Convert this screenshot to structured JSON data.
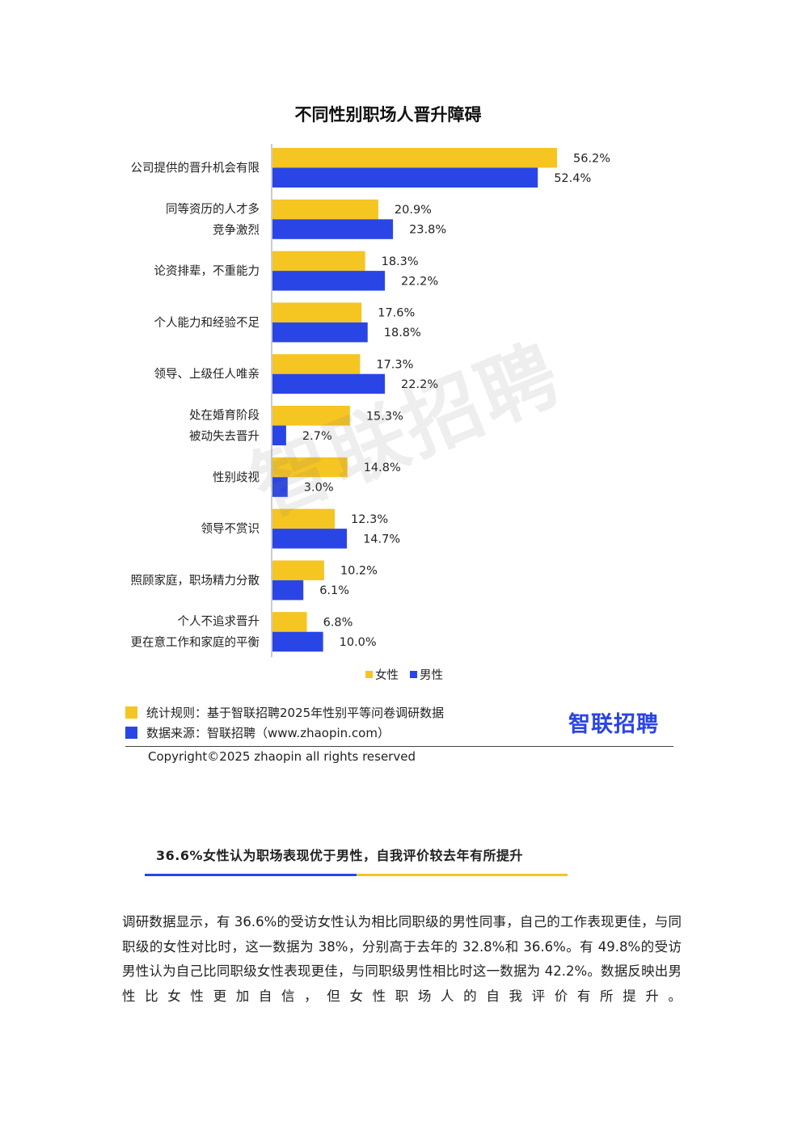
{
  "chart_data": {
    "type": "bar",
    "orientation": "horizontal",
    "title": "不同性别职场人晋升障碍",
    "categories": [
      [
        "公司提供的晋升机会有限"
      ],
      [
        "同等资历的人才多",
        "竞争激烈"
      ],
      [
        "论资排辈，不重能力"
      ],
      [
        "个人能力和经验不足"
      ],
      [
        "领导、上级任人唯亲"
      ],
      [
        "处在婚育阶段",
        "被动失去晋升"
      ],
      [
        "性别歧视"
      ],
      [
        "领导不赏识"
      ],
      [
        "照顾家庭，职场精力分散"
      ],
      [
        "个人不追求晋升",
        "更在意工作和家庭的平衡"
      ]
    ],
    "series": [
      {
        "name": "女性",
        "color": "#f5c522",
        "values": [
          56.2,
          20.9,
          18.3,
          17.6,
          17.3,
          15.3,
          14.8,
          12.3,
          10.2,
          6.8
        ],
        "labels": [
          "56.2%",
          "20.9%",
          "18.3%",
          "17.6%",
          "17.3%",
          "15.3%",
          "14.8%",
          "12.3%",
          "10.2%",
          "6.8%"
        ]
      },
      {
        "name": "男性",
        "color": "#2a45e6",
        "values": [
          52.4,
          23.8,
          22.2,
          18.8,
          22.2,
          2.7,
          3.0,
          14.7,
          6.1,
          10.0
        ],
        "labels": [
          "52.4%",
          "23.8%",
          "22.2%",
          "18.8%",
          "22.2%",
          "2.7%",
          "3.0%",
          "14.7%",
          "6.1%",
          "10.0%"
        ]
      }
    ],
    "legend_position": "bottom",
    "grid": false
  },
  "watermark": "智联招聘",
  "source": {
    "rule": "统计规则：基于智联招聘2025年性别平等问卷调研数据",
    "origin": "数据来源：智联招聘（www.zhaopin.com）",
    "rule_color": "#f5c522",
    "origin_color": "#2a45e6"
  },
  "brand": "智联招聘",
  "copyright": "Copyright©2025 zhaopin all rights reserved",
  "section_heading": "36.6%女性认为职场表现优于男性，自我评价较去年有所提升",
  "paragraph": "调研数据显示，有 36.6%的受访女性认为相比同职级的男性同事，自己的工作表现更佳，与同职级的女性对比时，这一数据为 38%，分别高于去年的 32.8%和 36.6%。有 49.8%的受访男性认为自己比同职级女性表现更佳，与同职级男性相比时这一数据为 42.2%。数据反映出男性比女性更加自信，但女性职场人的自我评价有所提升。"
}
